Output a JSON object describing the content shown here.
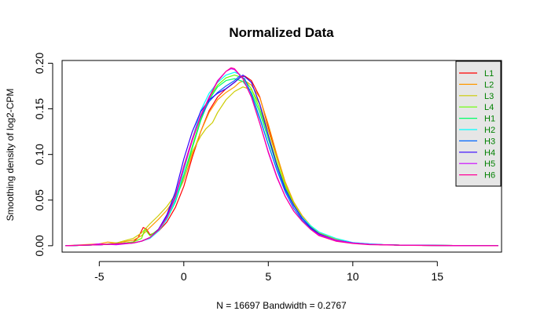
{
  "chart_data": {
    "type": "line",
    "title": "Normalized Data",
    "xlabel": "N = 16697   Bandwidth = 0.2767",
    "ylabel": "Smoothing density of log2-CPM",
    "xlim": [
      -7.2,
      18.8
    ],
    "ylim": [
      -0.007,
      0.203
    ],
    "x_ticks": [
      -5,
      0,
      5,
      10,
      15
    ],
    "y_ticks": [
      0.0,
      0.05,
      0.1,
      0.15,
      0.2
    ],
    "x_tick_labels": [
      "-5",
      "0",
      "5",
      "10",
      "15"
    ],
    "y_tick_labels": [
      "0.00",
      "0.05",
      "0.10",
      "0.15",
      "0.20"
    ],
    "grid": false,
    "legend_position": "top-right",
    "legend_background": "#e6e6e6",
    "legend_text_color": "#008000",
    "series": [
      {
        "name": "L1",
        "color": "#ff0000",
        "x": [
          -7,
          -5,
          -4,
          -3,
          -2.7,
          -2.4,
          -2.2,
          -2,
          -1.5,
          -1,
          -0.5,
          0,
          0.5,
          1,
          1.5,
          2,
          2.5,
          3,
          3.3,
          3.6,
          4,
          4.5,
          5,
          5.5,
          6,
          6.5,
          7,
          7.5,
          8,
          9,
          10,
          11,
          12,
          13,
          14,
          15,
          16,
          17,
          18.6
        ],
        "y": [
          0,
          0.001,
          0.002,
          0.004,
          0.009,
          0.02,
          0.018,
          0.012,
          0.016,
          0.026,
          0.042,
          0.065,
          0.097,
          0.125,
          0.148,
          0.163,
          0.172,
          0.179,
          0.184,
          0.186,
          0.181,
          0.163,
          0.13,
          0.098,
          0.068,
          0.046,
          0.032,
          0.022,
          0.014,
          0.007,
          0.003,
          0.0015,
          0.001,
          0.0006,
          0.0004,
          0.0003,
          0.0002,
          0.0001,
          0
        ]
      },
      {
        "name": "L2",
        "color": "#ff9900",
        "x": [
          -7,
          -5,
          -4.5,
          -4,
          -3,
          -2.5,
          -2,
          -1.5,
          -1,
          -0.5,
          0,
          0.5,
          1,
          1.5,
          2,
          2.5,
          3,
          3.3,
          3.6,
          4,
          4.5,
          5,
          5.5,
          6,
          6.5,
          7,
          7.5,
          8,
          9,
          10,
          11,
          12,
          13,
          14,
          15,
          16,
          17,
          18.6
        ],
        "y": [
          0,
          0.002,
          0.004,
          0.003,
          0.006,
          0.011,
          0.02,
          0.029,
          0.039,
          0.052,
          0.072,
          0.1,
          0.125,
          0.146,
          0.16,
          0.168,
          0.174,
          0.179,
          0.181,
          0.176,
          0.162,
          0.133,
          0.1,
          0.07,
          0.048,
          0.033,
          0.022,
          0.014,
          0.007,
          0.003,
          0.0015,
          0.001,
          0.0006,
          0.0004,
          0.0003,
          0.0002,
          0.0001,
          0
        ]
      },
      {
        "name": "L3",
        "color": "#cccc00",
        "x": [
          -7,
          -5,
          -4,
          -3,
          -2.5,
          -2,
          -1.5,
          -1,
          -0.5,
          0,
          0.5,
          1,
          1.3,
          1.7,
          2,
          2.5,
          3,
          3.5,
          4,
          4.5,
          5,
          5.5,
          6,
          6.5,
          7,
          7.5,
          8,
          9,
          10,
          11,
          12,
          13,
          14,
          15,
          16,
          17,
          18.6
        ],
        "y": [
          0,
          0.001,
          0.003,
          0.008,
          0.014,
          0.024,
          0.033,
          0.043,
          0.056,
          0.077,
          0.103,
          0.12,
          0.128,
          0.135,
          0.146,
          0.16,
          0.169,
          0.174,
          0.171,
          0.155,
          0.126,
          0.096,
          0.068,
          0.047,
          0.032,
          0.022,
          0.014,
          0.007,
          0.003,
          0.0015,
          0.001,
          0.0006,
          0.0004,
          0.0003,
          0.0002,
          0.0001,
          0
        ]
      },
      {
        "name": "L4",
        "color": "#66ff00",
        "x": [
          -7,
          -5,
          -4,
          -3,
          -2.5,
          -2.3,
          -2,
          -1.5,
          -1,
          -0.5,
          0,
          0.5,
          1,
          1.5,
          2,
          2.5,
          3,
          3.5,
          4,
          4.5,
          5,
          5.5,
          6,
          6.5,
          7,
          7.5,
          8,
          9,
          10,
          11,
          12,
          13,
          14,
          15,
          16,
          17,
          18.6
        ],
        "y": [
          0,
          0.001,
          0.002,
          0.004,
          0.008,
          0.018,
          0.011,
          0.018,
          0.03,
          0.05,
          0.077,
          0.109,
          0.139,
          0.162,
          0.176,
          0.184,
          0.187,
          0.184,
          0.172,
          0.15,
          0.121,
          0.091,
          0.065,
          0.045,
          0.031,
          0.021,
          0.013,
          0.006,
          0.003,
          0.0015,
          0.001,
          0.0006,
          0.0004,
          0.0003,
          0.0002,
          0.0001,
          0
        ]
      },
      {
        "name": "H1",
        "color": "#00ff66",
        "x": [
          -7,
          -5,
          -4,
          -3,
          -2.5,
          -2,
          -1.5,
          -1,
          -0.5,
          0,
          0.5,
          1,
          1.5,
          2,
          2.5,
          3,
          3.5,
          4,
          4.5,
          5,
          5.5,
          6,
          6.5,
          7,
          7.5,
          8,
          9,
          10,
          11,
          12,
          13,
          14,
          15,
          16,
          17,
          18.6
        ],
        "y": [
          0,
          0.001,
          0.002,
          0.003,
          0.005,
          0.009,
          0.017,
          0.029,
          0.048,
          0.076,
          0.107,
          0.137,
          0.16,
          0.174,
          0.181,
          0.183,
          0.18,
          0.168,
          0.146,
          0.117,
          0.088,
          0.063,
          0.044,
          0.03,
          0.02,
          0.013,
          0.006,
          0.003,
          0.0015,
          0.001,
          0.0006,
          0.0004,
          0.0003,
          0.0002,
          0.0001,
          0
        ]
      },
      {
        "name": "H2",
        "color": "#00ffff",
        "x": [
          -7,
          -5,
          -4,
          -3,
          -2.5,
          -2,
          -1.5,
          -1,
          -0.5,
          0,
          0.5,
          1,
          1.5,
          2,
          2.5,
          3,
          3.3,
          3.6,
          4,
          4.5,
          5,
          5.5,
          6,
          6.5,
          7,
          7.5,
          8,
          9,
          10,
          11,
          12,
          13,
          14,
          15,
          16,
          17,
          18.6
        ],
        "y": [
          0,
          0.001,
          0.002,
          0.003,
          0.005,
          0.008,
          0.016,
          0.029,
          0.05,
          0.082,
          0.117,
          0.148,
          0.167,
          0.179,
          0.187,
          0.19,
          0.188,
          0.18,
          0.163,
          0.139,
          0.111,
          0.084,
          0.061,
          0.044,
          0.031,
          0.022,
          0.015,
          0.008,
          0.0035,
          0.002,
          0.001,
          0.0006,
          0.0004,
          0.0003,
          0.0002,
          0.0001,
          0
        ]
      },
      {
        "name": "H3",
        "color": "#0066ff",
        "x": [
          -7,
          -5,
          -4,
          -3,
          -2.5,
          -2,
          -1.5,
          -1,
          -0.5,
          0,
          0.5,
          1,
          1.5,
          2,
          2.5,
          3,
          3.3,
          3.6,
          4,
          4.5,
          5,
          5.5,
          6,
          6.5,
          7,
          7.5,
          8,
          9,
          10,
          11,
          12,
          13,
          14,
          15,
          16,
          17,
          18.6
        ],
        "y": [
          0,
          0.001,
          0.002,
          0.003,
          0.005,
          0.009,
          0.018,
          0.032,
          0.055,
          0.087,
          0.117,
          0.141,
          0.158,
          0.168,
          0.175,
          0.181,
          0.186,
          0.183,
          0.166,
          0.14,
          0.111,
          0.083,
          0.059,
          0.041,
          0.028,
          0.019,
          0.012,
          0.006,
          0.003,
          0.0015,
          0.001,
          0.0006,
          0.0004,
          0.0003,
          0.0002,
          0.0001,
          0
        ]
      },
      {
        "name": "H4",
        "color": "#3300ff",
        "x": [
          -7,
          -5,
          -4,
          -3,
          -2.5,
          -2,
          -1.5,
          -1,
          -0.5,
          0,
          0.5,
          1,
          1.5,
          2,
          2.5,
          3,
          3.5,
          4,
          4.5,
          5,
          5.5,
          6,
          6.5,
          7,
          7.5,
          8,
          9,
          10,
          11,
          12,
          13,
          14,
          15,
          16,
          17,
          18.6
        ],
        "y": [
          0,
          0.001,
          0.002,
          0.003,
          0.005,
          0.009,
          0.018,
          0.034,
          0.059,
          0.095,
          0.125,
          0.147,
          0.16,
          0.167,
          0.172,
          0.179,
          0.187,
          0.179,
          0.155,
          0.121,
          0.088,
          0.062,
          0.044,
          0.03,
          0.02,
          0.013,
          0.006,
          0.003,
          0.0015,
          0.001,
          0.0006,
          0.0004,
          0.0003,
          0.0002,
          0.0001,
          0
        ]
      },
      {
        "name": "H5",
        "color": "#cc00ff",
        "x": [
          -7,
          -5.5,
          -5,
          -4,
          -3,
          -2.5,
          -2,
          -1.5,
          -1,
          -0.5,
          0,
          0.5,
          1,
          1.5,
          2,
          2.5,
          2.8,
          3,
          3.5,
          4,
          4.5,
          5,
          5.5,
          6,
          6.5,
          7,
          7.5,
          8,
          9,
          10,
          11,
          12,
          13,
          14,
          15,
          16,
          17,
          18.6
        ],
        "y": [
          0,
          0.001,
          0.002,
          0.001,
          0.003,
          0.005,
          0.009,
          0.017,
          0.031,
          0.053,
          0.085,
          0.115,
          0.142,
          0.163,
          0.181,
          0.191,
          0.194,
          0.193,
          0.183,
          0.163,
          0.134,
          0.102,
          0.075,
          0.054,
          0.038,
          0.027,
          0.018,
          0.012,
          0.006,
          0.003,
          0.0015,
          0.001,
          0.0006,
          0.0004,
          0.0003,
          0.0002,
          0.0001,
          0
        ]
      },
      {
        "name": "H6",
        "color": "#ff0099",
        "x": [
          -7,
          -5,
          -4,
          -3,
          -2.5,
          -2,
          -1.5,
          -1,
          -0.5,
          0,
          0.5,
          1,
          1.5,
          2,
          2.5,
          2.8,
          3,
          3.5,
          4,
          4.5,
          5,
          5.5,
          6,
          6.5,
          7,
          7.5,
          8,
          9,
          10,
          11,
          12,
          13,
          14,
          15,
          16,
          17,
          18.6
        ],
        "y": [
          0,
          0.001,
          0.002,
          0.003,
          0.005,
          0.009,
          0.017,
          0.031,
          0.054,
          0.087,
          0.117,
          0.143,
          0.162,
          0.18,
          0.191,
          0.195,
          0.194,
          0.183,
          0.163,
          0.134,
          0.103,
          0.076,
          0.054,
          0.038,
          0.027,
          0.018,
          0.011,
          0.005,
          0.0025,
          0.0012,
          0.0008,
          0.0005,
          0.0003,
          0.0002,
          0.0001,
          0.0001,
          0
        ]
      }
    ]
  }
}
